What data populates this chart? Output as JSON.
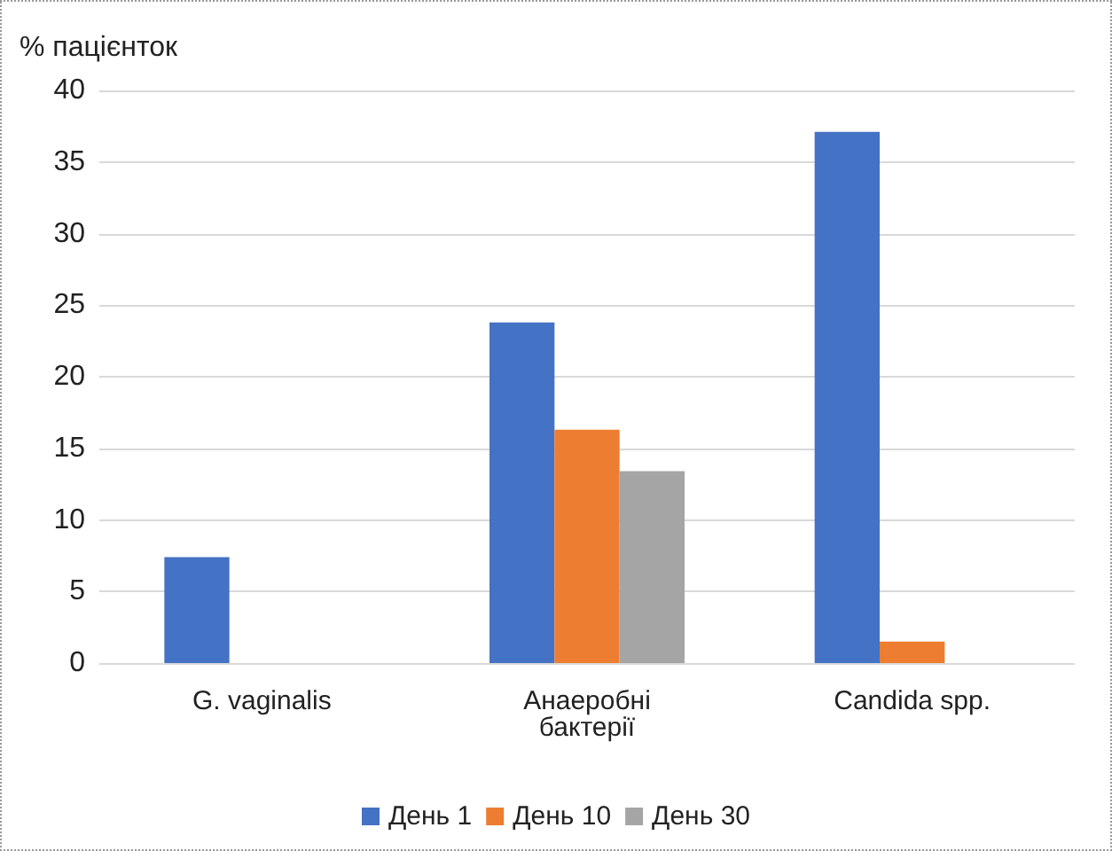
{
  "chart_data": {
    "type": "bar",
    "ylabel": "% пацієнток",
    "categories": [
      "G. vaginalis",
      "Анаеробні\nбактерії",
      "Candida spp."
    ],
    "series": [
      {
        "name": "День 1",
        "color": "#4472c4",
        "values": [
          7.4,
          23.8,
          37.1
        ]
      },
      {
        "name": "День 10",
        "color": "#ed7d31",
        "values": [
          0,
          16.3,
          1.5
        ]
      },
      {
        "name": "День 30",
        "color": "#a5a5a5",
        "values": [
          0,
          13.4,
          0
        ]
      }
    ],
    "ylim": [
      0,
      40
    ],
    "yticks": [
      0,
      5,
      10,
      15,
      20,
      25,
      30,
      35,
      40
    ],
    "grid": "y",
    "legend": "bottom"
  }
}
